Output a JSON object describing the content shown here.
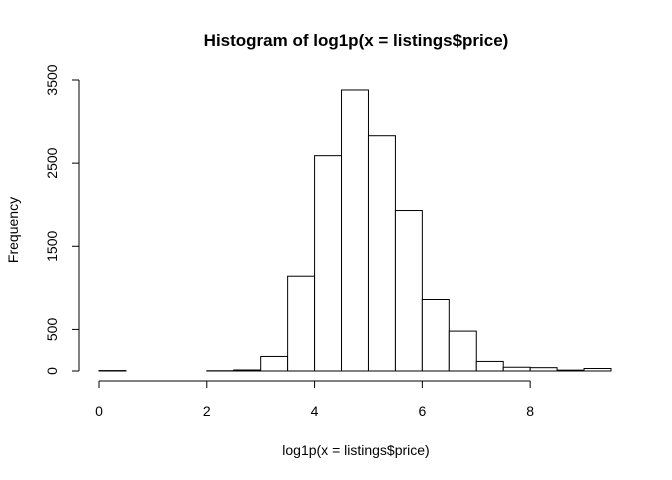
{
  "chart_data": {
    "type": "bar",
    "title": "Histogram of log1p(x = listings$price)",
    "xlabel": "log1p(x = listings$price)",
    "ylabel": "Frequency",
    "xlim": [
      0,
      9.5
    ],
    "ylim": [
      0,
      3500
    ],
    "x_ticks": [
      0,
      2,
      4,
      6,
      8
    ],
    "y_ticks": [
      0,
      500,
      1500,
      2500,
      3500
    ],
    "bin_width": 0.5,
    "bins": [
      {
        "start": 0.0,
        "end": 0.5,
        "count": 5
      },
      {
        "start": 0.5,
        "end": 1.0,
        "count": 0
      },
      {
        "start": 1.0,
        "end": 1.5,
        "count": 0
      },
      {
        "start": 1.5,
        "end": 2.0,
        "count": 0
      },
      {
        "start": 2.0,
        "end": 2.5,
        "count": 3
      },
      {
        "start": 2.5,
        "end": 3.0,
        "count": 12
      },
      {
        "start": 3.0,
        "end": 3.5,
        "count": 175
      },
      {
        "start": 3.5,
        "end": 4.0,
        "count": 1140
      },
      {
        "start": 4.0,
        "end": 4.5,
        "count": 2590
      },
      {
        "start": 4.5,
        "end": 5.0,
        "count": 3380
      },
      {
        "start": 5.0,
        "end": 5.5,
        "count": 2830
      },
      {
        "start": 5.5,
        "end": 6.0,
        "count": 1930
      },
      {
        "start": 6.0,
        "end": 6.5,
        "count": 860
      },
      {
        "start": 6.5,
        "end": 7.0,
        "count": 480
      },
      {
        "start": 7.0,
        "end": 7.5,
        "count": 115
      },
      {
        "start": 7.5,
        "end": 8.0,
        "count": 45
      },
      {
        "start": 8.0,
        "end": 8.5,
        "count": 40
      },
      {
        "start": 8.5,
        "end": 9.0,
        "count": 10
      },
      {
        "start": 9.0,
        "end": 9.5,
        "count": 30
      }
    ]
  }
}
